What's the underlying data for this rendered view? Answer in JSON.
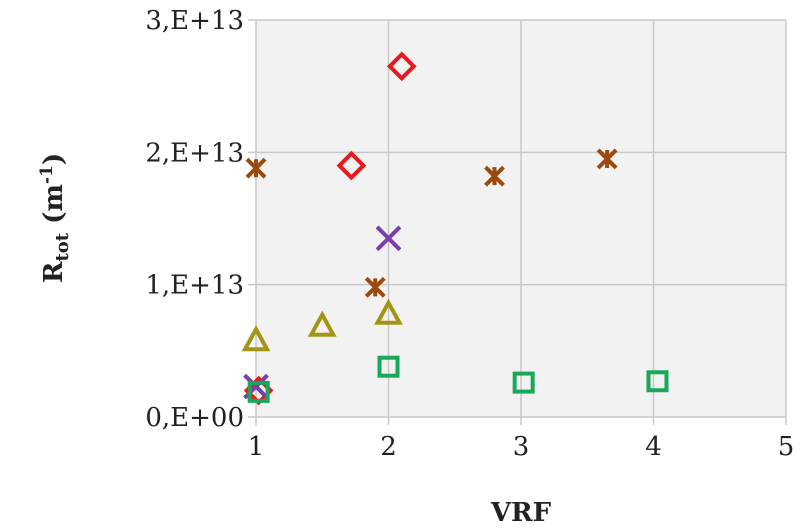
{
  "chart_data": {
    "type": "scatter",
    "title": "",
    "xlabel": "VRF",
    "ylabel": {
      "main": "R",
      "sub": "tot",
      "unit_open": " (m",
      "unit_sup": "-1",
      "unit_close": ")"
    },
    "xlim": [
      1,
      5
    ],
    "ylim": [
      0,
      30000000000000
    ],
    "grid": true,
    "legend": "none",
    "x_ticks": [
      {
        "value": 1,
        "label": "1"
      },
      {
        "value": 2,
        "label": "2"
      },
      {
        "value": 3,
        "label": "3"
      },
      {
        "value": 4,
        "label": "4"
      },
      {
        "value": 5,
        "label": "5"
      }
    ],
    "y_ticks": [
      {
        "value": 0,
        "label": "0,E+00"
      },
      {
        "value": 10000000000000,
        "label": "1,E+13"
      },
      {
        "value": 20000000000000,
        "label": "2,E+13"
      },
      {
        "value": 30000000000000,
        "label": "3,E+13"
      }
    ],
    "series": [
      {
        "marker": "diamond",
        "color": "#e8191c",
        "points": [
          [
            1.02,
            2000000000000.0
          ],
          [
            1.72,
            19000000000000.0
          ],
          [
            2.1,
            26500000000000.0
          ]
        ]
      },
      {
        "marker": "x",
        "color": "#7a3fa8",
        "points": [
          [
            1.0,
            2300000000000.0
          ],
          [
            2.0,
            13500000000000.0
          ]
        ]
      },
      {
        "marker": "asterisk",
        "color": "#9b4a0e",
        "points": [
          [
            1.0,
            18800000000000.0
          ],
          [
            1.9,
            9800000000000.0
          ],
          [
            2.8,
            18200000000000.0
          ],
          [
            3.65,
            19500000000000.0
          ]
        ]
      },
      {
        "marker": "triangle",
        "color": "#a39414",
        "points": [
          [
            1.0,
            5800000000000.0
          ],
          [
            1.5,
            6900000000000.0
          ],
          [
            2.0,
            7800000000000.0
          ]
        ]
      },
      {
        "marker": "square",
        "color": "#19a85a",
        "points": [
          [
            1.02,
            1900000000000.0
          ],
          [
            2.0,
            3800000000000.0
          ],
          [
            3.02,
            2600000000000.0
          ],
          [
            4.03,
            2700000000000.0
          ]
        ]
      }
    ]
  }
}
